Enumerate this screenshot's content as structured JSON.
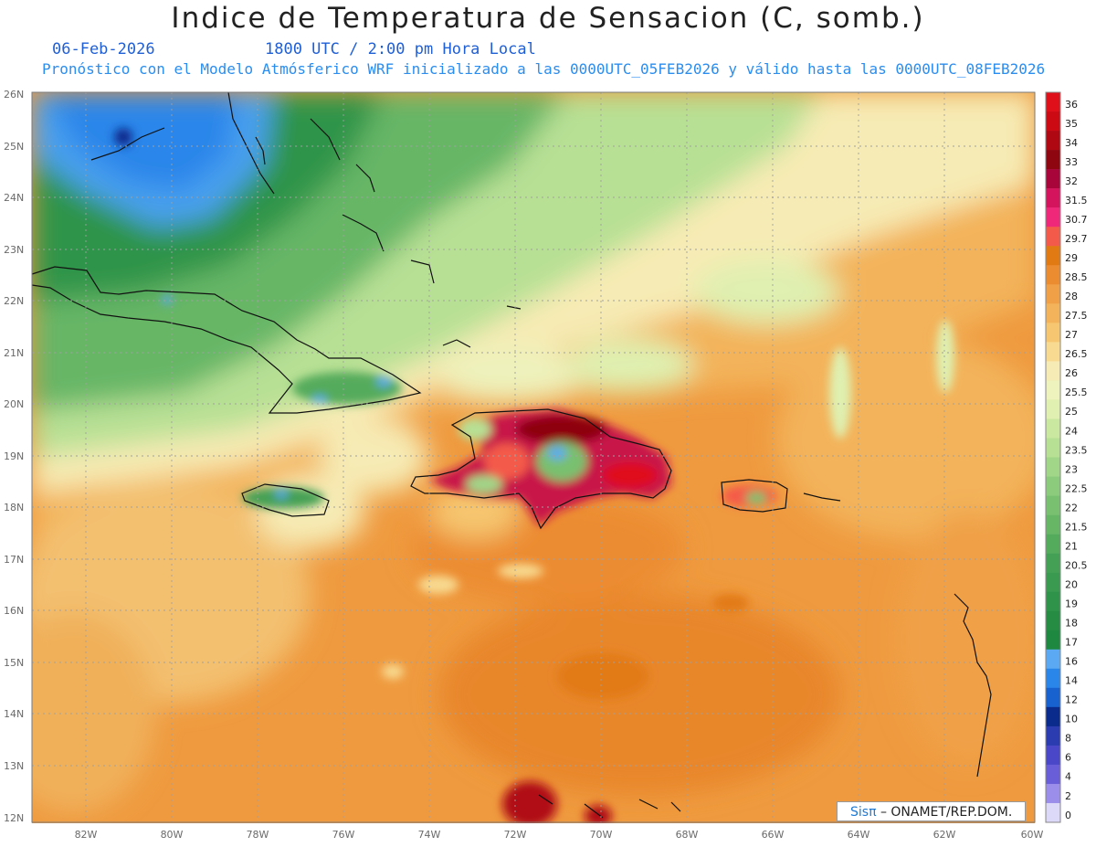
{
  "header": {
    "title": "Indice de Temperatura de Sensacion (C, somb.)",
    "date": "06-Feb-2026",
    "time": "1800 UTC / 2:00 pm Hora Local",
    "model_line": "Pronóstico con el Modelo Atmósferico WRF inicializado a las 0000UTC_05FEB2026 y válido hasta las  0000UTC_08FEB2026"
  },
  "map": {
    "lat_labels": [
      "26N",
      "25N",
      "24N",
      "23N",
      "22N",
      "21N",
      "20N",
      "19N",
      "18N",
      "17N",
      "16N",
      "15N",
      "14N",
      "13N",
      "12N"
    ],
    "lon_labels": [
      "82W",
      "80W",
      "78W",
      "76W",
      "74W",
      "72W",
      "70W",
      "68W",
      "66W",
      "64W",
      "62W",
      "60W"
    ],
    "ocean_color": "#ef9a3f",
    "features": [
      {
        "name": "Cuba",
        "type": "island"
      },
      {
        "name": "Jamaica",
        "type": "island"
      },
      {
        "name": "Hispaniola",
        "type": "island"
      },
      {
        "name": "Puerto Rico",
        "type": "island"
      },
      {
        "name": "Florida",
        "type": "land"
      },
      {
        "name": "Bahamas",
        "type": "islands"
      },
      {
        "name": "Lesser Antilles",
        "type": "islands"
      }
    ]
  },
  "legend": {
    "levels": [
      {
        "label": "36",
        "color": "#e0101a"
      },
      {
        "label": "35",
        "color": "#cc0a14"
      },
      {
        "label": "34",
        "color": "#b00812"
      },
      {
        "label": "33",
        "color": "#8e0610"
      },
      {
        "label": "32",
        "color": "#a8063a"
      },
      {
        "label": "31.5",
        "color": "#d4145c"
      },
      {
        "label": "30.7",
        "color": "#f0287a"
      },
      {
        "label": "29.7",
        "color": "#f45a4a"
      },
      {
        "label": "29",
        "color": "#e27a14"
      },
      {
        "label": "28.5",
        "color": "#ec8c30"
      },
      {
        "label": "28",
        "color": "#f0a046"
      },
      {
        "label": "27.5",
        "color": "#f3b35a"
      },
      {
        "label": "27",
        "color": "#f6c670"
      },
      {
        "label": "26.5",
        "color": "#f8da90"
      },
      {
        "label": "26",
        "color": "#f6ebb4"
      },
      {
        "label": "25.5",
        "color": "#eef2bc"
      },
      {
        "label": "25",
        "color": "#dff0b0"
      },
      {
        "label": "24",
        "color": "#cbe8a0"
      },
      {
        "label": "23.5",
        "color": "#b7e094"
      },
      {
        "label": "23",
        "color": "#a1d688"
      },
      {
        "label": "22.5",
        "color": "#8ccb7c"
      },
      {
        "label": "22",
        "color": "#79c070"
      },
      {
        "label": "21.5",
        "color": "#66b666"
      },
      {
        "label": "21",
        "color": "#54ab5c"
      },
      {
        "label": "20.5",
        "color": "#44a054"
      },
      {
        "label": "20",
        "color": "#3a9a50"
      },
      {
        "label": "19",
        "color": "#2f944a"
      },
      {
        "label": "18",
        "color": "#268c44"
      },
      {
        "label": "17",
        "color": "#1e8840"
      },
      {
        "label": "16",
        "color": "#5aa9f2"
      },
      {
        "label": "14",
        "color": "#2b86ea"
      },
      {
        "label": "12",
        "color": "#1762cf"
      },
      {
        "label": "10",
        "color": "#0a2a8c"
      },
      {
        "label": "8",
        "color": "#2a3cb0"
      },
      {
        "label": "6",
        "color": "#4a48c8"
      },
      {
        "label": "4",
        "color": "#6a5ed8"
      },
      {
        "label": "2",
        "color": "#9a8eea"
      },
      {
        "label": "0",
        "color": "#dcd8f8"
      }
    ]
  },
  "credit": {
    "brand": "Sisπ",
    "text": " – ONAMET/REP.DOM."
  }
}
